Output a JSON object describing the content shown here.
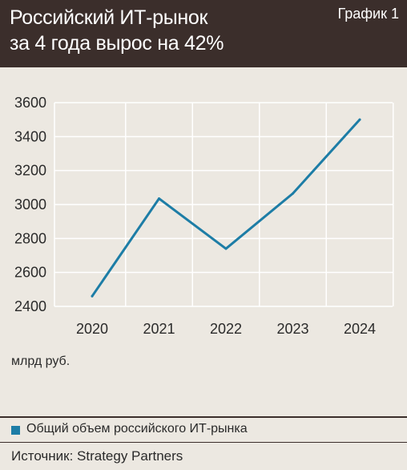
{
  "header": {
    "title_line1": "Российский ИТ-рынок",
    "title_line2": "за 4 года вырос на 42%",
    "label": "График 1"
  },
  "chart_data": {
    "type": "line",
    "title": "Российский ИТ-рынок за 4 года вырос на 42%",
    "x": [
      "2020",
      "2021",
      "2022",
      "2023",
      "2024"
    ],
    "series": [
      {
        "name": "Общий объем российского ИТ-рынка",
        "values": [
          2460,
          3035,
          2740,
          3065,
          3500
        ],
        "color": "#1d7da6"
      }
    ],
    "ylim": [
      2400,
      3600
    ],
    "yticks": [
      2400,
      2600,
      2800,
      3000,
      3200,
      3400,
      3600
    ],
    "grid": true,
    "ylabel": "",
    "xlabel": ""
  },
  "unit_label": "млрд руб.",
  "legend": {
    "label": "Общий объем российского ИТ-рынка"
  },
  "source": {
    "text": "Источник: Strategy Partners"
  },
  "colors": {
    "header_bg": "#3b2e2b",
    "page_bg": "#ece8e1",
    "line": "#1d7da6",
    "grid": "#ffffff"
  }
}
